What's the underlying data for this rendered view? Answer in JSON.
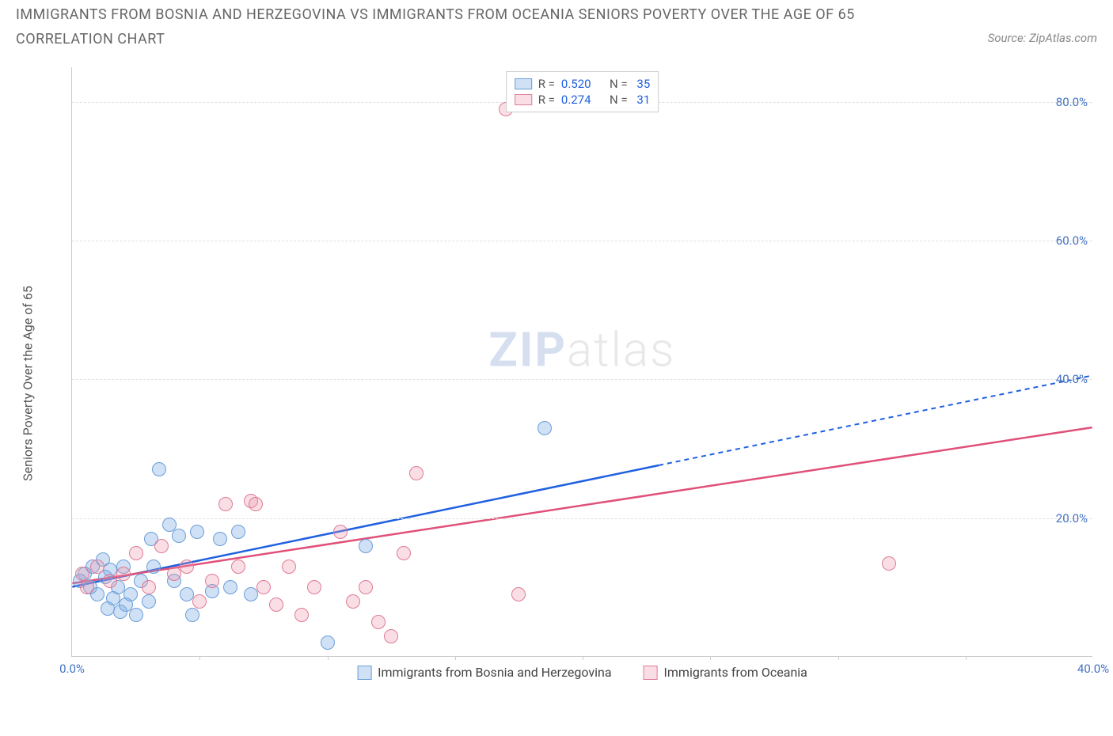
{
  "header": {
    "title": "IMMIGRANTS FROM BOSNIA AND HERZEGOVINA VS IMMIGRANTS FROM OCEANIA SENIORS POVERTY OVER THE AGE OF 65",
    "subtitle": "CORRELATION CHART",
    "source": "Source: ZipAtlas.com",
    "title_color": "#666666",
    "title_fontsize": 18
  },
  "watermark": {
    "part1": "ZIP",
    "part2": "atlas"
  },
  "chart": {
    "type": "scatter",
    "background_color": "#ffffff",
    "grid_color": "#e0e0e0",
    "axis_color": "#cccccc",
    "y_axis_label": "Seniors Poverty Over the Age of 65",
    "y_label_color": "#555555",
    "tick_label_color": "#4472c4",
    "xlim": [
      0,
      40
    ],
    "ylim": [
      0,
      85
    ],
    "y_ticks": [
      20,
      40,
      60,
      80
    ],
    "y_tick_labels": [
      "20.0%",
      "40.0%",
      "60.0%",
      "80.0%"
    ],
    "x_ticks": [
      0,
      40
    ],
    "x_tick_labels": [
      "0.0%",
      "40.0%"
    ],
    "x_minor_ticks": [
      5,
      10,
      15,
      20,
      25,
      30,
      35
    ],
    "series": [
      {
        "name": "Immigrants from Bosnia and Herzegovina",
        "fill_color": "rgba(120,170,230,0.35)",
        "stroke_color": "#6a9ed8",
        "line_color": "#2060e0",
        "marker_radius": 9,
        "R": "0.520",
        "N": "35",
        "trend": {
          "x1": 0,
          "y1": 10,
          "x2": 40,
          "y2": 40.5,
          "solid_until_x": 23
        },
        "points": [
          {
            "x": 0.3,
            "y": 11
          },
          {
            "x": 0.5,
            "y": 12
          },
          {
            "x": 0.7,
            "y": 10
          },
          {
            "x": 0.8,
            "y": 13
          },
          {
            "x": 1.0,
            "y": 9
          },
          {
            "x": 1.2,
            "y": 14
          },
          {
            "x": 1.3,
            "y": 11.5
          },
          {
            "x": 1.4,
            "y": 7
          },
          {
            "x": 1.5,
            "y": 12.5
          },
          {
            "x": 1.6,
            "y": 8.5
          },
          {
            "x": 1.8,
            "y": 10
          },
          {
            "x": 1.9,
            "y": 6.5
          },
          {
            "x": 2.0,
            "y": 13
          },
          {
            "x": 2.1,
            "y": 7.5
          },
          {
            "x": 2.3,
            "y": 9
          },
          {
            "x": 2.5,
            "y": 6
          },
          {
            "x": 2.7,
            "y": 11
          },
          {
            "x": 3.0,
            "y": 8
          },
          {
            "x": 3.1,
            "y": 17
          },
          {
            "x": 3.2,
            "y": 13
          },
          {
            "x": 3.4,
            "y": 27
          },
          {
            "x": 3.8,
            "y": 19
          },
          {
            "x": 4.2,
            "y": 17.5
          },
          {
            "x": 4.5,
            "y": 9
          },
          {
            "x": 4.7,
            "y": 6
          },
          {
            "x": 4.9,
            "y": 18
          },
          {
            "x": 5.5,
            "y": 9.5
          },
          {
            "x": 5.8,
            "y": 17
          },
          {
            "x": 6.2,
            "y": 10
          },
          {
            "x": 6.5,
            "y": 18
          },
          {
            "x": 7.0,
            "y": 9
          },
          {
            "x": 10.0,
            "y": 2
          },
          {
            "x": 11.5,
            "y": 16
          },
          {
            "x": 18.5,
            "y": 33
          },
          {
            "x": 4.0,
            "y": 11
          }
        ]
      },
      {
        "name": "Immigrants from Oceania",
        "fill_color": "rgba(235,150,170,0.30)",
        "stroke_color": "#e07a95",
        "line_color": "#e05078",
        "marker_radius": 9,
        "R": "0.274",
        "N": "31",
        "trend": {
          "x1": 0,
          "y1": 10.5,
          "x2": 40,
          "y2": 33,
          "solid_until_x": 40
        },
        "points": [
          {
            "x": 0.4,
            "y": 12
          },
          {
            "x": 0.6,
            "y": 10
          },
          {
            "x": 1.0,
            "y": 13
          },
          {
            "x": 1.5,
            "y": 11
          },
          {
            "x": 2.0,
            "y": 12
          },
          {
            "x": 2.5,
            "y": 15
          },
          {
            "x": 3.0,
            "y": 10
          },
          {
            "x": 3.5,
            "y": 16
          },
          {
            "x": 4.0,
            "y": 12
          },
          {
            "x": 4.5,
            "y": 13
          },
          {
            "x": 5.0,
            "y": 8
          },
          {
            "x": 5.5,
            "y": 11
          },
          {
            "x": 6.0,
            "y": 22
          },
          {
            "x": 6.5,
            "y": 13
          },
          {
            "x": 7.0,
            "y": 22.5
          },
          {
            "x": 7.2,
            "y": 22
          },
          {
            "x": 7.5,
            "y": 10
          },
          {
            "x": 8.0,
            "y": 7.5
          },
          {
            "x": 8.5,
            "y": 13
          },
          {
            "x": 9.0,
            "y": 6
          },
          {
            "x": 9.5,
            "y": 10
          },
          {
            "x": 10.5,
            "y": 18
          },
          {
            "x": 11.0,
            "y": 8
          },
          {
            "x": 12.0,
            "y": 5
          },
          {
            "x": 12.5,
            "y": 3
          },
          {
            "x": 13.5,
            "y": 26.5
          },
          {
            "x": 13.0,
            "y": 15
          },
          {
            "x": 17.5,
            "y": 9
          },
          {
            "x": 17.0,
            "y": 79
          },
          {
            "x": 32.0,
            "y": 13.5
          },
          {
            "x": 11.5,
            "y": 10
          }
        ]
      }
    ],
    "legend_top": {
      "R_label": "R =",
      "N_label": "N ="
    },
    "legend_bottom_swatch_size": 18
  }
}
